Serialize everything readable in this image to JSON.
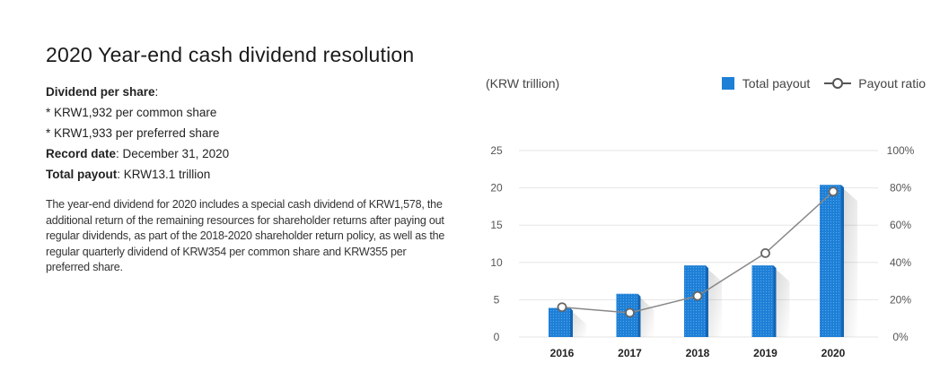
{
  "page": {
    "title": "2020 Year-end cash dividend resolution",
    "dividend_label": "Dividend per share",
    "dividend_colon": ":",
    "common_line": "* KRW1,932 per common share",
    "preferred_line": "* KRW1,933 per preferred share",
    "record_label": "Record date",
    "record_value": ": December 31, 2020",
    "payout_label": "Total payout",
    "payout_value": ": KRW13.1 trillion",
    "description": "The year-end dividend for 2020 includes a special cash dividend of KRW1,578, the additional return of the remaining resources for shareholder returns after paying out regular dividends, as part of the 2018-2020 shareholder return policy, as well as the regular quarterly dividend of KRW354 per common share and KRW355 per preferred share."
  },
  "chart_data": {
    "type": "bar",
    "unit_label": "(KRW trillion)",
    "categories": [
      "2016",
      "2017",
      "2018",
      "2019",
      "2020"
    ],
    "series": [
      {
        "name": "Total payout",
        "type": "bar",
        "axis": "left",
        "values": [
          3.9,
          5.8,
          9.6,
          9.6,
          20.4
        ]
      },
      {
        "name": "Payout ratio",
        "type": "line",
        "axis": "right",
        "values": [
          16,
          13,
          22,
          45,
          78
        ]
      }
    ],
    "y_left": {
      "min": 0,
      "max": 25,
      "ticks": [
        0,
        5,
        10,
        15,
        20,
        25
      ]
    },
    "y_right": {
      "min": 0,
      "max": 100,
      "ticks": [
        "0%",
        "20%",
        "40%",
        "60%",
        "80%",
        "100%"
      ]
    },
    "colors": {
      "bar": "#1d7fd6",
      "bar_side": "#1565b3",
      "line": "#888888",
      "grid": "#e6e6e6"
    },
    "legend_position": "top-right"
  }
}
